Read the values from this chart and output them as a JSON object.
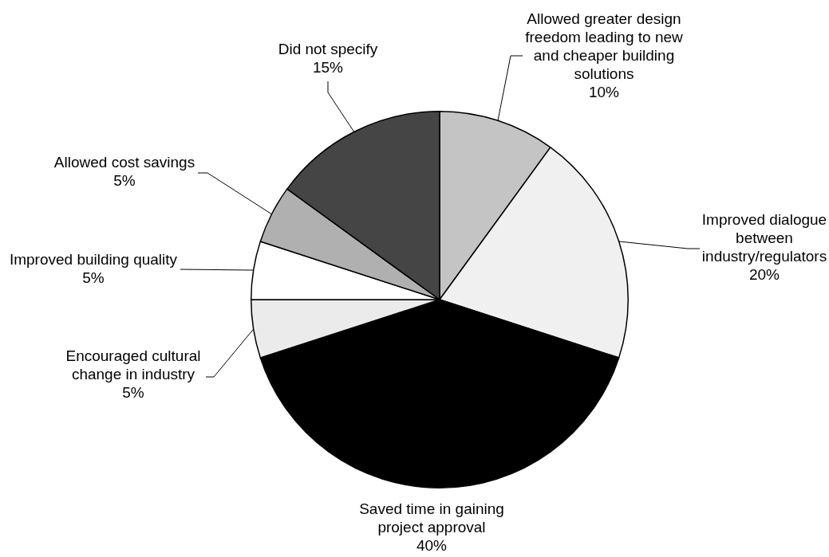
{
  "chart_data": {
    "type": "pie",
    "categories": [
      "Allowed greater design freedom leading to new and cheaper building solutions",
      "Improved dialogue between industry/regulators",
      "Saved time in gaining project approval",
      "Encouraged cultural change in industry",
      "Improved building quality",
      "Allowed cost savings",
      "Did not specify"
    ],
    "values": [
      10,
      20,
      40,
      5,
      5,
      5,
      15
    ],
    "value_labels": [
      "10%",
      "20%",
      "40%",
      "5%",
      "5%",
      "5%",
      "15%"
    ],
    "colors": [
      "#c4c4c4",
      "#f0f0f0",
      "#000000",
      "#ebebeb",
      "#ffffff",
      "#b0b0b0",
      "#454545"
    ]
  }
}
